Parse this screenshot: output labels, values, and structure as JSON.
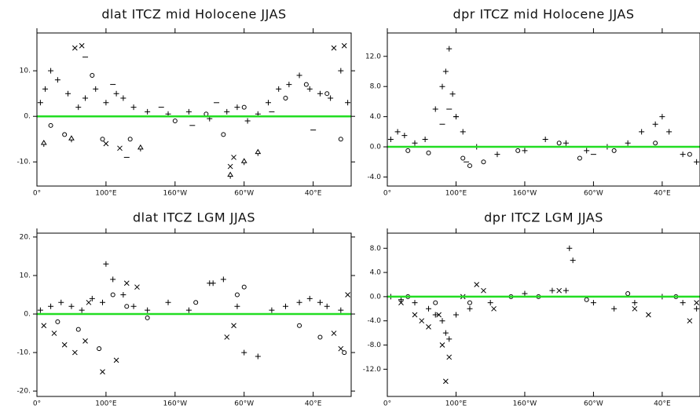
{
  "chart_data": [
    {
      "type": "scatter",
      "title": "dlat ITCZ mid Holocene JJAS",
      "xlim": [
        0,
        455
      ],
      "xticks": [
        {
          "value": 0,
          "label": "0°"
        },
        {
          "value": 100,
          "label": "100°E"
        },
        {
          "value": 200,
          "label": "160°W"
        },
        {
          "value": 300,
          "label": "60°W"
        },
        {
          "value": 400,
          "label": "40°E"
        }
      ],
      "ylim": [
        -15.3,
        18.3
      ],
      "yticks": [
        {
          "value": -10,
          "label": "-10."
        },
        {
          "value": 0,
          "label": "0."
        },
        {
          "value": 10,
          "label": "10."
        }
      ],
      "zero_line_color": "#22dd22",
      "series": [
        {
          "marker": "+",
          "color": "#000000",
          "x": [
            5,
            12,
            20,
            30,
            45,
            60,
            70,
            85,
            100,
            115,
            125,
            140,
            160,
            190,
            220,
            250,
            275,
            290,
            305,
            320,
            335,
            350,
            365,
            380,
            395,
            410,
            425,
            440,
            450
          ],
          "values": [
            3,
            6,
            10,
            8,
            5,
            2,
            4,
            6,
            3,
            5,
            4,
            2,
            1,
            0.5,
            1,
            -0.5,
            1,
            2,
            -1,
            0.5,
            3,
            6,
            7,
            9,
            6,
            5,
            4,
            10,
            3
          ]
        },
        {
          "marker": "x",
          "color": "#000000",
          "x": [
            55,
            65,
            100,
            120,
            280,
            285,
            430,
            445
          ],
          "values": [
            15,
            15.5,
            -6,
            -7,
            -11,
            -9,
            15,
            15.5
          ]
        },
        {
          "marker": "o",
          "color": "#000000",
          "x": [
            20,
            40,
            80,
            95,
            135,
            200,
            245,
            270,
            300,
            360,
            390,
            420,
            440
          ],
          "values": [
            -2,
            -4,
            9,
            -5,
            -5,
            -1,
            0.5,
            -4,
            2,
            4,
            7,
            5,
            -5
          ]
        },
        {
          "marker": "^",
          "color": "#000000",
          "x": [
            10,
            50,
            150,
            280,
            300,
            320
          ],
          "values": [
            -6,
            -5,
            -7,
            -13,
            -10,
            -8
          ]
        },
        {
          "marker": "-",
          "color": "#000000",
          "x": [
            70,
            110,
            130,
            180,
            225,
            260,
            340,
            400
          ],
          "values": [
            13,
            7,
            -9,
            2,
            -2,
            3,
            1,
            -3
          ]
        }
      ]
    },
    {
      "type": "scatter",
      "title": "dpr ITCZ mid Holocene JJAS",
      "xlim": [
        0,
        455
      ],
      "xticks": [
        {
          "value": 0,
          "label": "0°"
        },
        {
          "value": 100,
          "label": "100°E"
        },
        {
          "value": 200,
          "label": "160°W"
        },
        {
          "value": 300,
          "label": "60°W"
        },
        {
          "value": 400,
          "label": "40°E"
        }
      ],
      "ylim": [
        -5.2,
        15.1
      ],
      "yticks": [
        {
          "value": -4,
          "label": "-4.0"
        },
        {
          "value": 0,
          "label": "0.0"
        },
        {
          "value": 4,
          "label": "4.0"
        },
        {
          "value": 8,
          "label": "8.0"
        },
        {
          "value": 12,
          "label": "12.0"
        }
      ],
      "zero_line_color": "#22dd22",
      "series": [
        {
          "marker": "+",
          "color": "#000000",
          "x": [
            5,
            15,
            25,
            40,
            55,
            70,
            80,
            85,
            90,
            95,
            100,
            110,
            130,
            160,
            200,
            230,
            260,
            290,
            320,
            350,
            370,
            390,
            400,
            410,
            430,
            450
          ],
          "values": [
            1,
            2,
            1.5,
            0.5,
            1,
            5,
            8,
            10,
            13,
            7,
            4,
            2,
            0,
            -1,
            -0.5,
            1,
            0.5,
            -0.5,
            0,
            0.5,
            2,
            3,
            4,
            2,
            -1,
            -2
          ]
        },
        {
          "marker": "o",
          "color": "#000000",
          "x": [
            30,
            60,
            110,
            120,
            140,
            190,
            250,
            280,
            330,
            390,
            440
          ],
          "values": [
            -0.5,
            -0.8,
            -1.5,
            -2.5,
            -2,
            -0.5,
            0.5,
            -1.5,
            -0.5,
            0.5,
            -1
          ]
        },
        {
          "marker": "-",
          "color": "#000000",
          "x": [
            80,
            90,
            100,
            115,
            300
          ],
          "values": [
            3,
            5,
            4,
            -2,
            -1
          ]
        }
      ]
    },
    {
      "type": "scatter",
      "title": "dlat ITCZ LGM JJAS",
      "xlim": [
        0,
        455
      ],
      "xticks": [
        {
          "value": 0,
          "label": "0°"
        },
        {
          "value": 100,
          "label": "100°E"
        },
        {
          "value": 200,
          "label": "160°W"
        },
        {
          "value": 300,
          "label": "60°W"
        },
        {
          "value": 400,
          "label": "40°E"
        }
      ],
      "ylim": [
        -21.4,
        21
      ],
      "yticks": [
        {
          "value": -20,
          "label": "-20."
        },
        {
          "value": -10,
          "label": "-10."
        },
        {
          "value": 0,
          "label": "0."
        },
        {
          "value": 10,
          "label": "10."
        },
        {
          "value": 20,
          "label": "20."
        }
      ],
      "zero_line_color": "#22dd22",
      "series": [
        {
          "marker": "+",
          "color": "#000000",
          "x": [
            5,
            20,
            35,
            50,
            65,
            80,
            95,
            100,
            110,
            125,
            140,
            160,
            190,
            220,
            250,
            255,
            270,
            290,
            300,
            320,
            340,
            360,
            380,
            395,
            410,
            420,
            440
          ],
          "values": [
            1,
            2,
            3,
            2,
            1,
            4,
            3,
            13,
            9,
            5,
            2,
            1,
            3,
            1,
            8,
            8,
            9,
            2,
            -10,
            -11,
            1,
            2,
            3,
            4,
            3,
            2,
            1
          ]
        },
        {
          "marker": "x",
          "color": "#000000",
          "x": [
            10,
            25,
            40,
            55,
            70,
            75,
            95,
            115,
            130,
            145,
            275,
            285,
            430,
            440,
            450
          ],
          "values": [
            -3,
            -5,
            -8,
            -10,
            -7,
            3,
            -15,
            -12,
            8,
            7,
            -6,
            -3,
            -5,
            -9,
            5
          ]
        },
        {
          "marker": "o",
          "color": "#000000",
          "x": [
            30,
            60,
            90,
            110,
            130,
            160,
            230,
            290,
            300,
            380,
            410,
            445
          ],
          "values": [
            -2,
            -4,
            -9,
            5,
            2,
            -1,
            3,
            5,
            7,
            -3,
            -6,
            -10
          ]
        }
      ]
    },
    {
      "type": "scatter",
      "title": "dpr ITCZ LGM JJAS",
      "xlim": [
        0,
        455
      ],
      "xticks": [
        {
          "value": 0,
          "label": "0°"
        },
        {
          "value": 100,
          "label": "100°E"
        },
        {
          "value": 200,
          "label": "160°W"
        },
        {
          "value": 300,
          "label": "60°W"
        },
        {
          "value": 400,
          "label": "40°E"
        }
      ],
      "ylim": [
        -16.5,
        10.5
      ],
      "yticks": [
        {
          "value": -12,
          "label": "-12.0"
        },
        {
          "value": -8,
          "label": "-8.0"
        },
        {
          "value": -4,
          "label": "-4.0"
        },
        {
          "value": 0,
          "label": "0.0"
        },
        {
          "value": 4,
          "label": "4.0"
        },
        {
          "value": 8,
          "label": "8.0"
        }
      ],
      "zero_line_color": "#22dd22",
      "series": [
        {
          "marker": "+",
          "color": "#000000",
          "x": [
            5,
            20,
            40,
            60,
            70,
            80,
            85,
            90,
            100,
            120,
            150,
            200,
            240,
            260,
            265,
            270,
            300,
            330,
            360,
            400,
            430,
            450
          ],
          "values": [
            0,
            -0.5,
            -1,
            -2,
            -3,
            -4,
            -6,
            -7,
            -3,
            -2,
            -1,
            0.5,
            1,
            1,
            8,
            6,
            -1,
            -2,
            -1,
            0,
            -1,
            -2
          ]
        },
        {
          "marker": "x",
          "color": "#000000",
          "x": [
            20,
            40,
            50,
            60,
            75,
            80,
            85,
            90,
            110,
            130,
            140,
            155,
            250,
            360,
            380,
            440,
            450
          ],
          "values": [
            -1,
            -3,
            -4,
            -5,
            -3,
            -8,
            -14,
            -10,
            0,
            2,
            1,
            -2,
            1,
            -2,
            -3,
            -4,
            -1
          ]
        },
        {
          "marker": "o",
          "color": "#000000",
          "x": [
            30,
            70,
            120,
            180,
            220,
            290,
            350,
            420
          ],
          "values": [
            0,
            -1,
            -1,
            0,
            0,
            -0.5,
            0.5,
            0
          ]
        }
      ]
    }
  ]
}
